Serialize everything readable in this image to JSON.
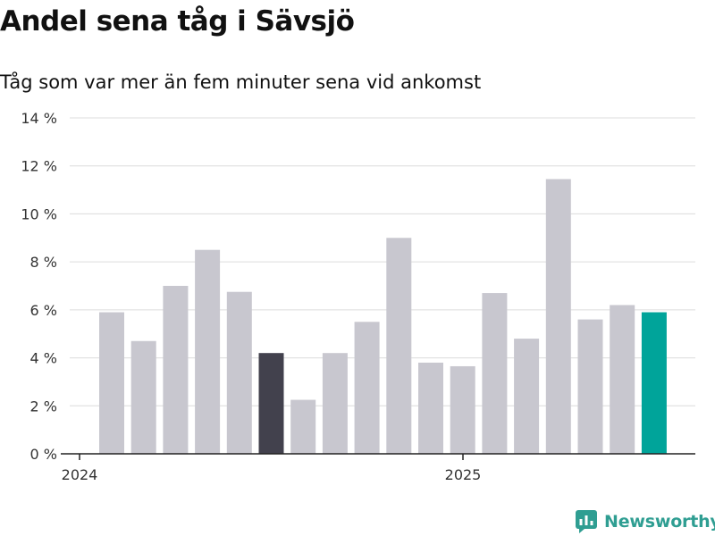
{
  "header": {
    "title": "Andel sena tåg i Sävsjö",
    "subtitle": "Tåg som var mer än fem minuter sena vid ankomst"
  },
  "brand": {
    "name": "Newsworthy",
    "icon": "newsworthy-logo-icon",
    "color": "#2f9e92"
  },
  "chart_data": {
    "type": "bar",
    "title": "Andel sena tåg i Sävsjö",
    "subtitle": "Tåg som var mer än fem minuter sena vid ankomst",
    "ylim": [
      0,
      14
    ],
    "yticks": [
      0,
      2,
      4,
      6,
      8,
      10,
      12,
      14
    ],
    "ytick_labels": [
      "0 %",
      "2 %",
      "4 %",
      "6 %",
      "8 %",
      "10 %",
      "12 %",
      "14 %"
    ],
    "xtick_labels": [
      "2024",
      "2025"
    ],
    "xtick_positions": [
      0,
      12
    ],
    "grid": true,
    "values": [
      5.9,
      4.7,
      7.0,
      8.5,
      6.75,
      4.2,
      2.25,
      4.2,
      5.5,
      9.0,
      3.8,
      3.65,
      6.7,
      4.8,
      11.45,
      5.6,
      6.2,
      5.9
    ],
    "highlight": {
      "5": "#42414d",
      "17": "#00a49a"
    },
    "colors": {
      "default": "#c8c7cf",
      "grid": "#dcdcdc",
      "axis": "#222222"
    }
  }
}
